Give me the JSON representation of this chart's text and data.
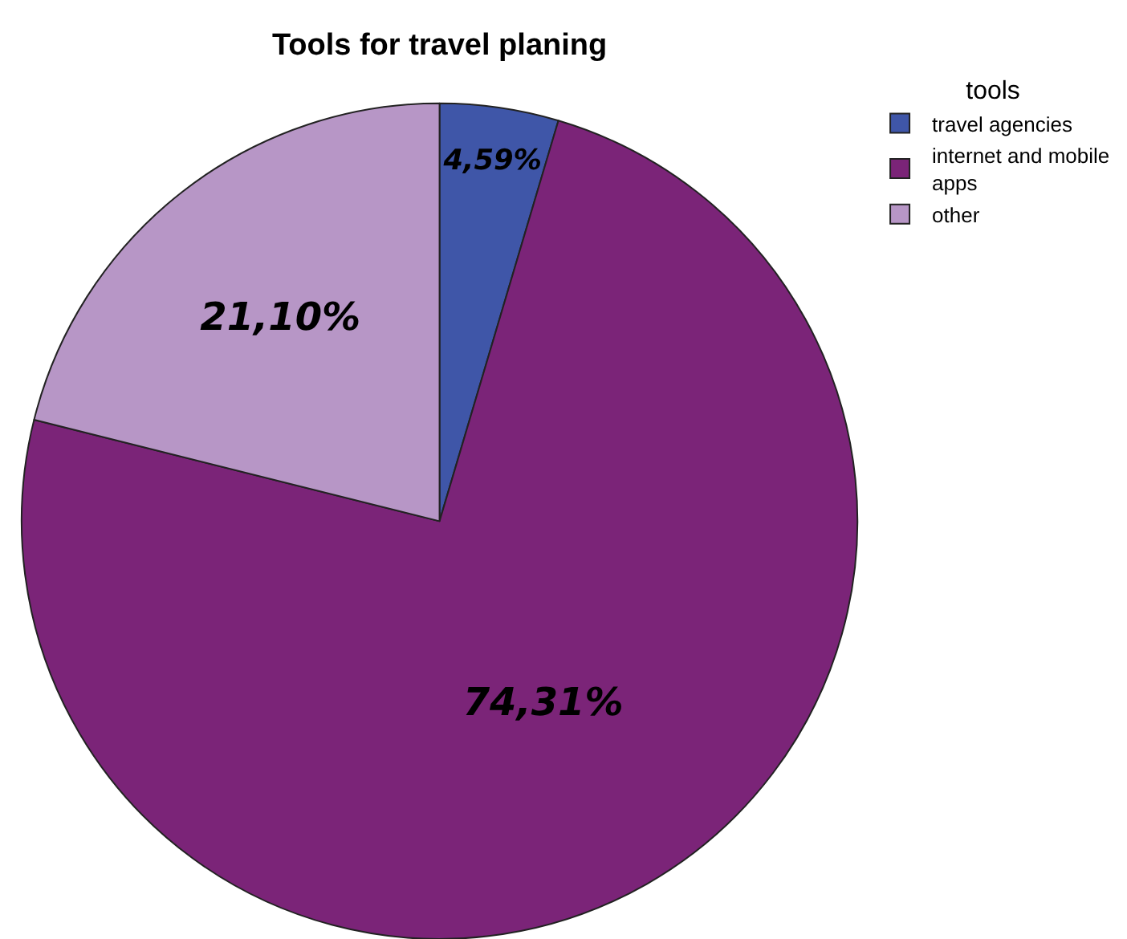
{
  "chart_data": {
    "type": "pie",
    "title": "Tools for travel planing",
    "legend_title": "tools",
    "legend": "top right",
    "categories": [
      "travel agencies",
      "internet and mobile apps",
      "other"
    ],
    "values": [
      4.59,
      74.31,
      21.1
    ],
    "colors": [
      "#3f56a8",
      "#7b2478",
      "#b796c6"
    ],
    "value_labels": [
      "4,59%",
      "74,31%",
      "21,10%"
    ]
  }
}
